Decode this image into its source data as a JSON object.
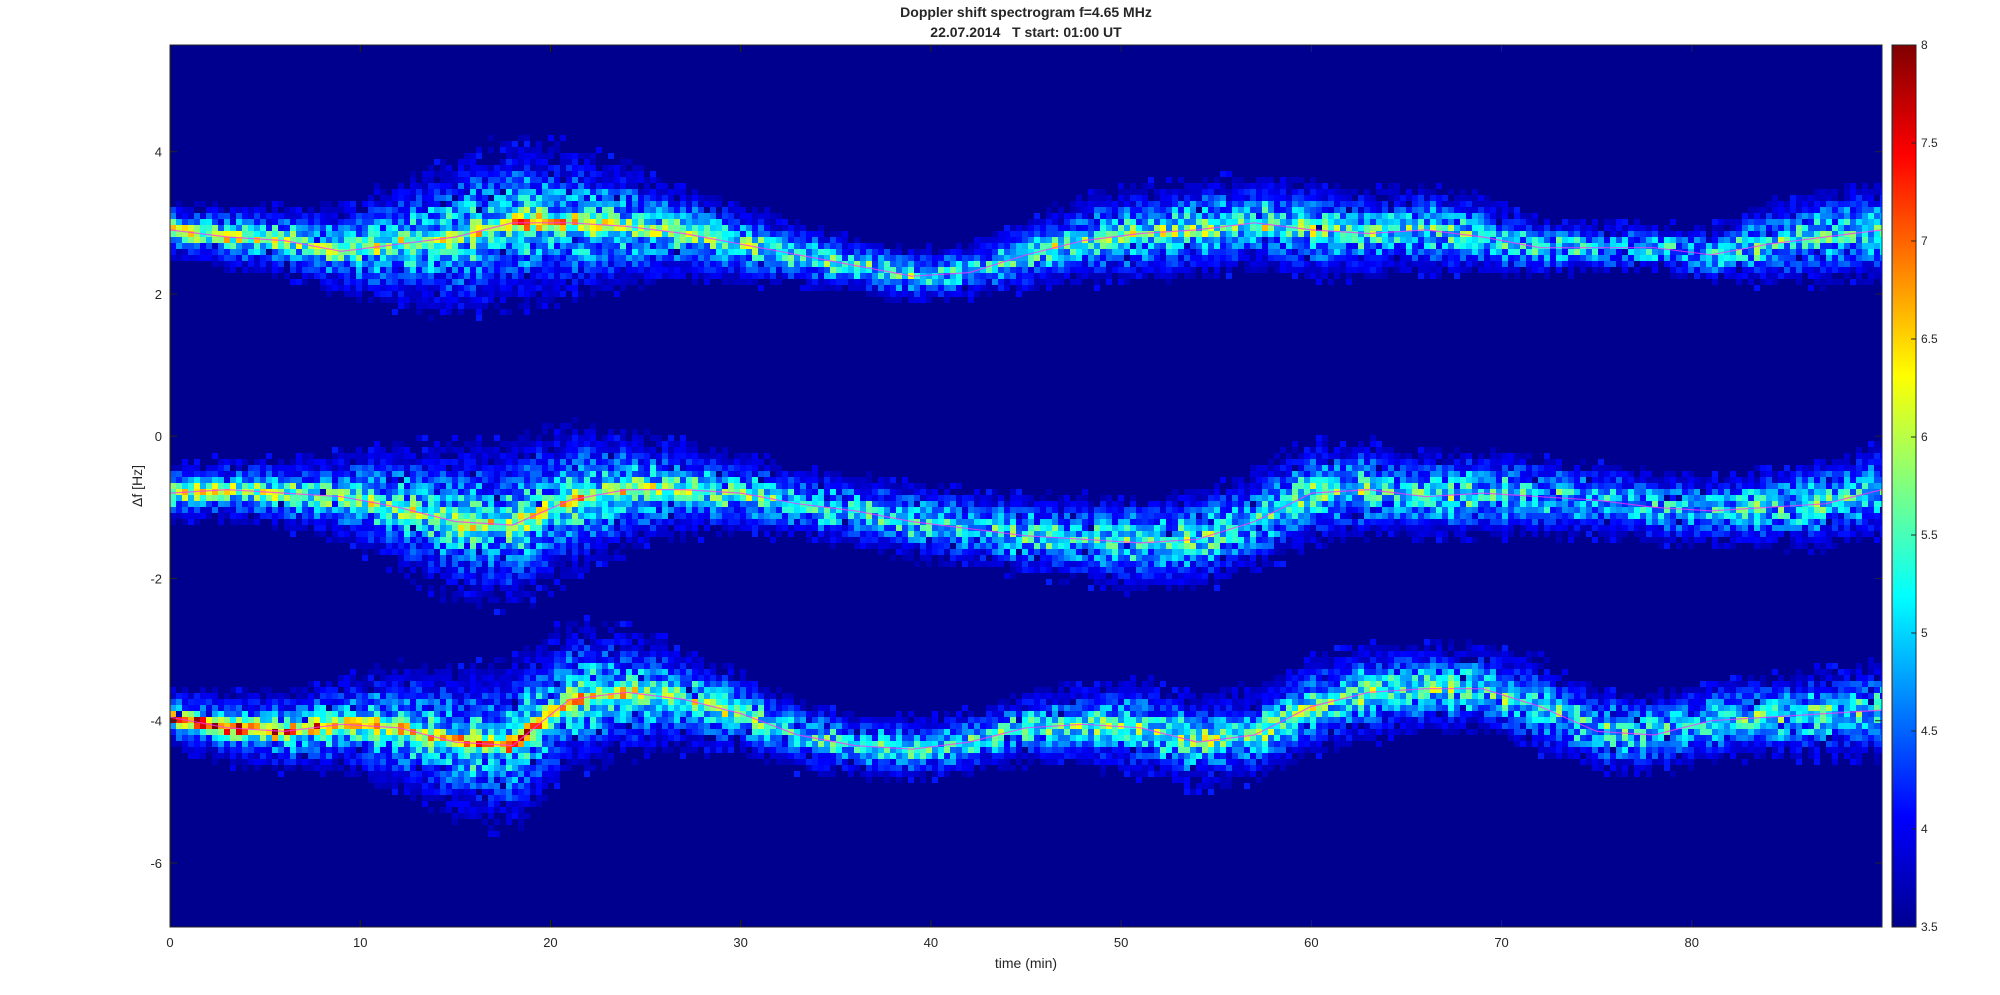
{
  "chart_data": {
    "type": "heatmap",
    "title": "Doppler shift spectrogram f=4.65 MHz",
    "subtitle": "22.07.2014   T start: 01:00 UT",
    "xlabel": "time (min)",
    "ylabel": "Δf [Hz]",
    "xlim": [
      0,
      90
    ],
    "ylim": [
      -6.9,
      5.5
    ],
    "x_ticks": [
      0,
      10,
      20,
      30,
      40,
      50,
      60,
      70,
      80
    ],
    "y_ticks": [
      4,
      2,
      0,
      -2,
      -4,
      -6
    ],
    "colorbar": {
      "range": [
        3.5,
        8
      ],
      "ticks": [
        8,
        7.5,
        7,
        6.5,
        6,
        5.5,
        5,
        4.5,
        4,
        3.5
      ],
      "colormap": "jet",
      "background_color": "#00008f"
    },
    "grid": false,
    "bands": [
      {
        "name": "",
        "time": [
          0,
          3,
          6,
          9,
          12,
          15,
          18,
          21,
          24,
          27,
          30,
          33,
          36,
          39,
          42,
          45,
          48,
          51,
          54,
          57,
          60,
          63,
          66,
          69,
          72,
          75,
          78,
          81,
          84,
          87,
          90
        ],
        "freq": [
          2.9,
          2.8,
          2.75,
          2.6,
          2.7,
          2.8,
          3.0,
          3.0,
          2.95,
          2.85,
          2.7,
          2.55,
          2.4,
          2.25,
          2.3,
          2.55,
          2.75,
          2.85,
          2.9,
          3.0,
          2.9,
          2.85,
          2.9,
          2.8,
          2.65,
          2.65,
          2.65,
          2.55,
          2.7,
          2.8,
          2.9
        ],
        "halfwidth": [
          0.35,
          0.4,
          0.45,
          0.55,
          0.8,
          1.0,
          1.05,
          0.95,
          0.75,
          0.6,
          0.5,
          0.4,
          0.35,
          0.35,
          0.35,
          0.45,
          0.55,
          0.6,
          0.6,
          0.6,
          0.6,
          0.55,
          0.55,
          0.5,
          0.35,
          0.3,
          0.3,
          0.35,
          0.5,
          0.6,
          0.65
        ],
        "peak": [
          6.0,
          5.8,
          5.6,
          5.5,
          5.7,
          6.0,
          6.6,
          6.4,
          6.0,
          5.7,
          5.4,
          5.0,
          4.9,
          5.0,
          4.9,
          5.1,
          5.4,
          5.5,
          5.4,
          5.5,
          5.4,
          5.1,
          5.0,
          4.9,
          4.7,
          4.6,
          4.6,
          4.6,
          4.8,
          5.0,
          5.0
        ]
      },
      {
        "name": "",
        "time": [
          0,
          3,
          6,
          9,
          12,
          15,
          18,
          21,
          24,
          27,
          30,
          33,
          36,
          39,
          42,
          45,
          48,
          51,
          54,
          57,
          60,
          63,
          66,
          69,
          72,
          75,
          78,
          81,
          84,
          87,
          90
        ],
        "freq": [
          -0.8,
          -0.75,
          -0.8,
          -0.85,
          -1.0,
          -1.2,
          -1.25,
          -0.9,
          -0.75,
          -0.75,
          -0.8,
          -0.95,
          -1.05,
          -1.2,
          -1.3,
          -1.4,
          -1.45,
          -1.5,
          -1.45,
          -1.2,
          -0.8,
          -0.75,
          -0.85,
          -0.8,
          -0.85,
          -0.9,
          -1.0,
          -1.05,
          -1.0,
          -0.95,
          -0.75
        ],
        "halfwidth": [
          0.35,
          0.4,
          0.45,
          0.55,
          0.8,
          0.95,
          1.05,
          0.95,
          0.75,
          0.6,
          0.5,
          0.45,
          0.45,
          0.5,
          0.5,
          0.5,
          0.55,
          0.6,
          0.6,
          0.65,
          0.65,
          0.6,
          0.55,
          0.55,
          0.5,
          0.45,
          0.45,
          0.45,
          0.5,
          0.55,
          0.6
        ],
        "peak": [
          6.0,
          5.8,
          5.6,
          5.5,
          5.6,
          5.9,
          6.3,
          6.2,
          6.0,
          5.7,
          5.3,
          5.0,
          4.9,
          5.2,
          5.0,
          4.9,
          5.0,
          5.1,
          5.1,
          5.3,
          5.3,
          5.2,
          5.0,
          4.8,
          4.7,
          4.6,
          4.6,
          4.6,
          4.8,
          4.9,
          5.0
        ]
      },
      {
        "name": "",
        "time": [
          0,
          3,
          6,
          9,
          12,
          15,
          18,
          21,
          24,
          27,
          30,
          33,
          36,
          39,
          42,
          45,
          48,
          51,
          54,
          57,
          60,
          63,
          66,
          69,
          72,
          75,
          78,
          81,
          84,
          87,
          90
        ],
        "freq": [
          -3.95,
          -4.1,
          -4.15,
          -4.05,
          -4.1,
          -4.3,
          -4.35,
          -3.7,
          -3.6,
          -3.7,
          -3.9,
          -4.2,
          -4.35,
          -4.4,
          -4.3,
          -4.1,
          -4.05,
          -4.1,
          -4.3,
          -4.2,
          -3.8,
          -3.6,
          -3.55,
          -3.55,
          -3.8,
          -4.15,
          -4.2,
          -4.0,
          -3.95,
          -3.9,
          -3.85
        ],
        "halfwidth": [
          0.4,
          0.45,
          0.5,
          0.6,
          0.8,
          0.95,
          1.05,
          0.95,
          0.8,
          0.65,
          0.5,
          0.45,
          0.4,
          0.4,
          0.4,
          0.45,
          0.55,
          0.6,
          0.6,
          0.6,
          0.6,
          0.6,
          0.55,
          0.55,
          0.6,
          0.55,
          0.5,
          0.5,
          0.5,
          0.55,
          0.6
        ],
        "peak": [
          7.4,
          7.2,
          7.0,
          6.6,
          6.4,
          6.6,
          7.1,
          6.6,
          6.2,
          5.7,
          5.3,
          5.0,
          4.9,
          5.0,
          5.0,
          5.2,
          5.5,
          5.6,
          5.4,
          5.5,
          5.6,
          5.4,
          5.2,
          5.0,
          4.9,
          4.8,
          4.8,
          4.8,
          4.9,
          5.0,
          5.0
        ]
      }
    ]
  }
}
